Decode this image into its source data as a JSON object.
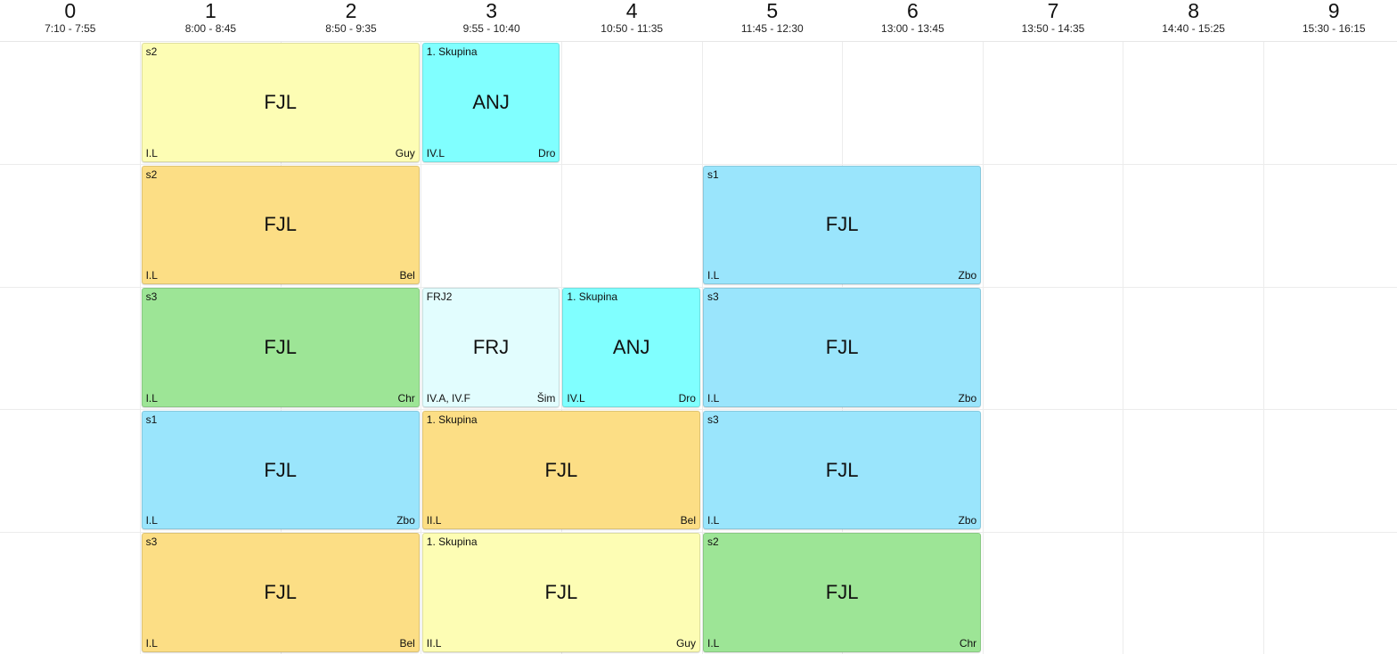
{
  "periods": [
    {
      "num": "0",
      "time": "7:10 - 7:55"
    },
    {
      "num": "1",
      "time": "8:00 - 8:45"
    },
    {
      "num": "2",
      "time": "8:50 - 9:35"
    },
    {
      "num": "3",
      "time": "9:55 - 10:40"
    },
    {
      "num": "4",
      "time": "10:50 - 11:35"
    },
    {
      "num": "5",
      "time": "11:45 - 12:30"
    },
    {
      "num": "6",
      "time": "13:00 - 13:45"
    },
    {
      "num": "7",
      "time": "13:50 - 14:35"
    },
    {
      "num": "8",
      "time": "14:40 - 15:25"
    },
    {
      "num": "9",
      "time": "15:30 - 16:15"
    }
  ],
  "colors": {
    "yellow": "#fdfdb4",
    "orange": "#fcde85",
    "green": "#9de596",
    "cyan": "#80ffff",
    "lightblue": "#9ae5fc",
    "palecyan": "#e2fdfe"
  },
  "lessons": [
    {
      "day": 0,
      "period": 1,
      "span": 2,
      "color": "yellow",
      "group": "s2",
      "subject": "FJL",
      "room": "I.L",
      "teacher": "Guy"
    },
    {
      "day": 0,
      "period": 3,
      "span": 1,
      "color": "cyan",
      "group": "1. Skupina",
      "subject": "ANJ",
      "room": "IV.L",
      "teacher": "Dro"
    },
    {
      "day": 1,
      "period": 1,
      "span": 2,
      "color": "orange",
      "group": "s2",
      "subject": "FJL",
      "room": "I.L",
      "teacher": "Bel"
    },
    {
      "day": 1,
      "period": 5,
      "span": 2,
      "color": "lightblue",
      "group": "s1",
      "subject": "FJL",
      "room": "I.L",
      "teacher": "Zbo"
    },
    {
      "day": 2,
      "period": 1,
      "span": 2,
      "color": "green",
      "group": "s3",
      "subject": "FJL",
      "room": "I.L",
      "teacher": "Chr"
    },
    {
      "day": 2,
      "period": 3,
      "span": 1,
      "color": "palecyan",
      "group": "FRJ2",
      "subject": "FRJ",
      "room": "IV.A, IV.F",
      "teacher": "Šim"
    },
    {
      "day": 2,
      "period": 4,
      "span": 1,
      "color": "cyan",
      "group": "1. Skupina",
      "subject": "ANJ",
      "room": "IV.L",
      "teacher": "Dro"
    },
    {
      "day": 2,
      "period": 5,
      "span": 2,
      "color": "lightblue",
      "group": "s3",
      "subject": "FJL",
      "room": "I.L",
      "teacher": "Zbo"
    },
    {
      "day": 3,
      "period": 1,
      "span": 2,
      "color": "lightblue",
      "group": "s1",
      "subject": "FJL",
      "room": "I.L",
      "teacher": "Zbo"
    },
    {
      "day": 3,
      "period": 3,
      "span": 2,
      "color": "orange",
      "group": "1. Skupina",
      "subject": "FJL",
      "room": "II.L",
      "teacher": "Bel"
    },
    {
      "day": 3,
      "period": 5,
      "span": 2,
      "color": "lightblue",
      "group": "s3",
      "subject": "FJL",
      "room": "I.L",
      "teacher": "Zbo"
    },
    {
      "day": 4,
      "period": 1,
      "span": 2,
      "color": "orange",
      "group": "s3",
      "subject": "FJL",
      "room": "I.L",
      "teacher": "Bel"
    },
    {
      "day": 4,
      "period": 3,
      "span": 2,
      "color": "yellow",
      "group": "1. Skupina",
      "subject": "FJL",
      "room": "II.L",
      "teacher": "Guy"
    },
    {
      "day": 4,
      "period": 5,
      "span": 2,
      "color": "green",
      "group": "s2",
      "subject": "FJL",
      "room": "I.L",
      "teacher": "Chr"
    }
  ]
}
